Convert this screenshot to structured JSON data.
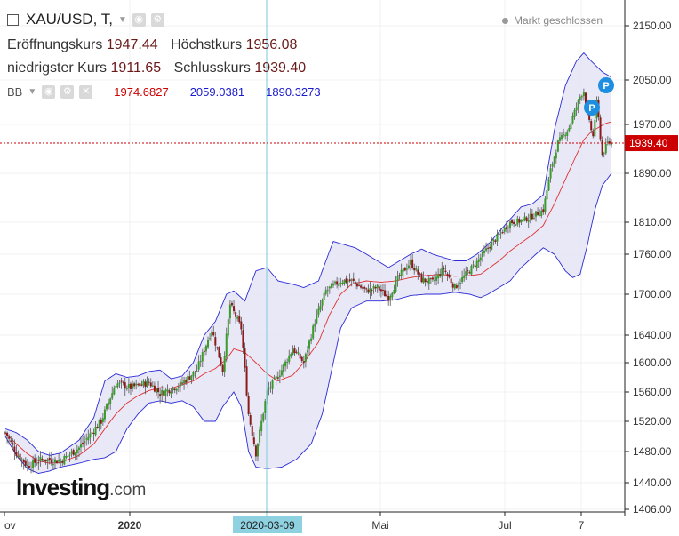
{
  "header": {
    "symbol": "XAU/USD, T,",
    "open_label": "Eröffnungskurs",
    "open_value": "1947.44",
    "high_label": "Höchstkurs",
    "high_value": "1956.08",
    "low_label": "niedrigster Kurs",
    "low_value": "1911.65",
    "close_label": "Schlusskurs",
    "close_value": "1939.40"
  },
  "indicator": {
    "name": "BB",
    "middle": "1974.6827",
    "upper": "2059.0381",
    "lower": "1890.3273"
  },
  "market_status": "Markt geschlossen",
  "logo": {
    "main": "Investing",
    "suffix": ".com"
  },
  "colors": {
    "bull": "#3a9b2a",
    "bear": "#8b1a1a",
    "band_fill": "#e4e4f6",
    "band_line": "#2b2bd6",
    "middle_line": "#e03030",
    "price_line": "#cc0000",
    "crosshair": "#8ed1e0",
    "marker": "#1e8fe0"
  },
  "chart_data": {
    "type": "candlestick",
    "ylim": [
      1406,
      2150
    ],
    "y_ticks": [
      "2150.00",
      "2050.00",
      "1970.00",
      "1890.00",
      "1810.00",
      "1760.00",
      "1700.00",
      "1640.00",
      "1600.00",
      "1560.00",
      "1520.00",
      "1480.00",
      "1440.00",
      "1406.00"
    ],
    "x_ticks": [
      "ov",
      "2020",
      "Mai",
      "Jul",
      "7"
    ],
    "crosshair_label": "2020-03-09",
    "last_price": "1939.40",
    "event_markers": [
      "P",
      "P"
    ],
    "anchors": {
      "close": [
        [
          0,
          1505
        ],
        [
          6,
          1478
        ],
        [
          12,
          1462
        ],
        [
          20,
          1470
        ],
        [
          30,
          1468
        ],
        [
          40,
          1485
        ],
        [
          52,
          1520
        ],
        [
          60,
          1572
        ],
        [
          68,
          1566
        ],
        [
          78,
          1573
        ],
        [
          84,
          1558
        ],
        [
          95,
          1570
        ],
        [
          104,
          1590
        ],
        [
          112,
          1648
        ],
        [
          118,
          1590
        ],
        [
          122,
          1685
        ],
        [
          128,
          1650
        ],
        [
          132,
          1530
        ],
        [
          136,
          1478
        ],
        [
          142,
          1560
        ],
        [
          150,
          1590
        ],
        [
          156,
          1620
        ],
        [
          162,
          1600
        ],
        [
          168,
          1660
        ],
        [
          174,
          1705
        ],
        [
          182,
          1720
        ],
        [
          188,
          1720
        ],
        [
          196,
          1705
        ],
        [
          202,
          1710
        ],
        [
          208,
          1695
        ],
        [
          214,
          1728
        ],
        [
          220,
          1748
        ],
        [
          226,
          1722
        ],
        [
          232,
          1718
        ],
        [
          238,
          1738
        ],
        [
          244,
          1710
        ],
        [
          250,
          1730
        ],
        [
          256,
          1748
        ],
        [
          262,
          1770
        ],
        [
          268,
          1790
        ],
        [
          274,
          1810
        ],
        [
          280,
          1812
        ],
        [
          286,
          1820
        ],
        [
          292,
          1830
        ],
        [
          296,
          1895
        ],
        [
          300,
          1940
        ],
        [
          306,
          1965
        ],
        [
          312,
          2020
        ],
        [
          314,
          2030
        ],
        [
          316,
          1985
        ],
        [
          319,
          1950
        ],
        [
          321,
          2010
        ],
        [
          324,
          1920
        ],
        [
          327,
          1940
        ],
        [
          329,
          1939.4
        ]
      ],
      "upper": [
        [
          0,
          1510
        ],
        [
          6,
          1505
        ],
        [
          12,
          1495
        ],
        [
          18,
          1480
        ],
        [
          24,
          1475
        ],
        [
          30,
          1478
        ],
        [
          40,
          1495
        ],
        [
          48,
          1525
        ],
        [
          54,
          1575
        ],
        [
          60,
          1585
        ],
        [
          66,
          1580
        ],
        [
          72,
          1582
        ],
        [
          78,
          1588
        ],
        [
          84,
          1590
        ],
        [
          90,
          1578
        ],
        [
          96,
          1582
        ],
        [
          102,
          1600
        ],
        [
          108,
          1640
        ],
        [
          114,
          1660
        ],
        [
          120,
          1700
        ],
        [
          124,
          1705
        ],
        [
          130,
          1690
        ],
        [
          136,
          1735
        ],
        [
          142,
          1740
        ],
        [
          148,
          1720
        ],
        [
          156,
          1715
        ],
        [
          162,
          1710
        ],
        [
          170,
          1720
        ],
        [
          178,
          1780
        ],
        [
          184,
          1775
        ],
        [
          190,
          1770
        ],
        [
          196,
          1760
        ],
        [
          202,
          1750
        ],
        [
          208,
          1740
        ],
        [
          214,
          1750
        ],
        [
          220,
          1760
        ],
        [
          226,
          1768
        ],
        [
          232,
          1760
        ],
        [
          238,
          1755
        ],
        [
          244,
          1750
        ],
        [
          250,
          1750
        ],
        [
          256,
          1760
        ],
        [
          262,
          1775
        ],
        [
          268,
          1795
        ],
        [
          274,
          1815
        ],
        [
          280,
          1835
        ],
        [
          286,
          1840
        ],
        [
          292,
          1855
        ],
        [
          298,
          1960
        ],
        [
          304,
          2040
        ],
        [
          310,
          2085
        ],
        [
          314,
          2100
        ],
        [
          318,
          2085
        ],
        [
          324,
          2065
        ],
        [
          329,
          2055
        ]
      ],
      "lower": [
        [
          0,
          1500
        ],
        [
          6,
          1475
        ],
        [
          12,
          1458
        ],
        [
          18,
          1452
        ],
        [
          24,
          1455
        ],
        [
          30,
          1460
        ],
        [
          40,
          1465
        ],
        [
          48,
          1470
        ],
        [
          54,
          1472
        ],
        [
          60,
          1480
        ],
        [
          66,
          1510
        ],
        [
          72,
          1530
        ],
        [
          78,
          1545
        ],
        [
          84,
          1548
        ],
        [
          90,
          1545
        ],
        [
          96,
          1548
        ],
        [
          102,
          1540
        ],
        [
          108,
          1520
        ],
        [
          114,
          1520
        ],
        [
          118,
          1540
        ],
        [
          124,
          1560
        ],
        [
          128,
          1540
        ],
        [
          132,
          1480
        ],
        [
          136,
          1460
        ],
        [
          142,
          1458
        ],
        [
          150,
          1460
        ],
        [
          158,
          1470
        ],
        [
          166,
          1490
        ],
        [
          172,
          1530
        ],
        [
          178,
          1600
        ],
        [
          182,
          1650
        ],
        [
          188,
          1680
        ],
        [
          196,
          1690
        ],
        [
          204,
          1690
        ],
        [
          212,
          1692
        ],
        [
          220,
          1698
        ],
        [
          228,
          1700
        ],
        [
          236,
          1700
        ],
        [
          244,
          1703
        ],
        [
          252,
          1700
        ],
        [
          258,
          1695
        ],
        [
          262,
          1700
        ],
        [
          268,
          1710
        ],
        [
          274,
          1720
        ],
        [
          280,
          1740
        ],
        [
          286,
          1755
        ],
        [
          292,
          1770
        ],
        [
          298,
          1760
        ],
        [
          304,
          1735
        ],
        [
          308,
          1725
        ],
        [
          312,
          1730
        ],
        [
          316,
          1775
        ],
        [
          320,
          1830
        ],
        [
          324,
          1870
        ],
        [
          329,
          1890
        ]
      ],
      "middle": [
        [
          0,
          1505
        ],
        [
          6,
          1490
        ],
        [
          12,
          1477
        ],
        [
          18,
          1468
        ],
        [
          24,
          1465
        ],
        [
          30,
          1466
        ],
        [
          40,
          1475
        ],
        [
          48,
          1490
        ],
        [
          54,
          1510
        ],
        [
          60,
          1530
        ],
        [
          66,
          1545
        ],
        [
          72,
          1555
        ],
        [
          78,
          1562
        ],
        [
          84,
          1566
        ],
        [
          90,
          1565
        ],
        [
          96,
          1570
        ],
        [
          102,
          1575
        ],
        [
          108,
          1585
        ],
        [
          114,
          1592
        ],
        [
          120,
          1605
        ],
        [
          124,
          1620
        ],
        [
          130,
          1615
        ],
        [
          136,
          1600
        ],
        [
          142,
          1585
        ],
        [
          148,
          1575
        ],
        [
          156,
          1583
        ],
        [
          162,
          1600
        ],
        [
          170,
          1630
        ],
        [
          176,
          1670
        ],
        [
          182,
          1700
        ],
        [
          188,
          1715
        ],
        [
          196,
          1720
        ],
        [
          204,
          1718
        ],
        [
          212,
          1720
        ],
        [
          220,
          1725
        ],
        [
          228,
          1728
        ],
        [
          236,
          1730
        ],
        [
          244,
          1727
        ],
        [
          252,
          1728
        ],
        [
          258,
          1730
        ],
        [
          262,
          1738
        ],
        [
          268,
          1750
        ],
        [
          274,
          1765
        ],
        [
          280,
          1778
        ],
        [
          286,
          1790
        ],
        [
          292,
          1805
        ],
        [
          298,
          1840
        ],
        [
          304,
          1880
        ],
        [
          310,
          1920
        ],
        [
          314,
          1945
        ],
        [
          318,
          1958
        ],
        [
          322,
          1965
        ],
        [
          326,
          1972
        ],
        [
          329,
          1974.68
        ]
      ]
    }
  }
}
